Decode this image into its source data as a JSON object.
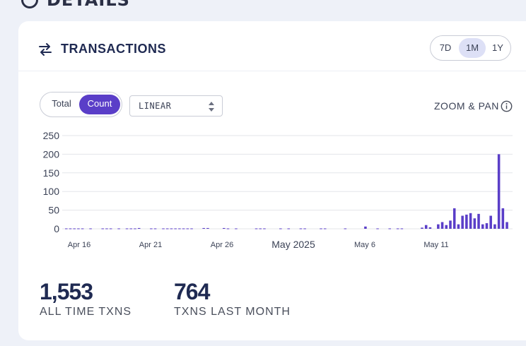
{
  "page": {
    "section_heading": "DETAILS"
  },
  "card": {
    "title": "TRANSACTIONS",
    "range_options": [
      "7D",
      "1M",
      "1Y"
    ],
    "range_selected": "1M",
    "mode_options": [
      "Total",
      "Count"
    ],
    "mode_selected": "Count",
    "scale_value": "LINEAR",
    "zoom_label": "ZOOM & PAN"
  },
  "colors": {
    "accent": "#5a3ec8",
    "title": "#1f2a52",
    "bar": "#5a3ec8"
  },
  "icons": {
    "title": "swap-arrows-icon",
    "info": "info-icon",
    "select": "sort-arrows-icon",
    "heading": "circle-icon"
  },
  "chart_data": {
    "type": "bar",
    "ylim": [
      0,
      250
    ],
    "yticks": [
      0,
      50,
      100,
      150,
      200,
      250
    ],
    "grid": true,
    "xtick_labels": [
      "Apr 16",
      "Apr 21",
      "Apr 26",
      "May 2025",
      "May 6",
      "May 11"
    ],
    "series": [
      {
        "values": [
          1,
          1,
          1,
          1,
          1,
          0,
          1,
          0,
          0,
          1,
          1,
          1,
          0,
          1,
          0,
          1,
          1,
          1,
          2,
          0,
          0,
          1,
          1,
          0,
          1,
          1,
          1,
          1,
          1,
          1,
          1,
          1,
          0,
          0,
          2,
          2,
          0,
          0,
          0,
          2,
          1,
          0,
          1,
          0,
          0,
          0,
          0,
          1,
          1,
          1,
          0,
          0,
          0,
          1,
          0,
          1,
          0,
          0,
          1,
          1,
          0,
          0,
          0,
          1,
          1,
          0,
          0,
          0,
          0,
          1,
          0,
          0,
          0,
          0,
          6,
          0,
          0,
          1,
          0,
          0,
          1,
          0,
          1,
          1,
          0,
          0,
          0,
          0,
          3,
          10,
          4,
          0,
          12,
          18,
          10,
          22,
          55,
          12,
          35,
          38,
          42,
          28,
          40,
          12,
          15,
          35,
          12,
          200,
          55,
          18
        ]
      }
    ]
  },
  "stats": [
    {
      "value": "1,553",
      "label": "ALL TIME TXNS"
    },
    {
      "value": "764",
      "label": "TXNS LAST MONTH"
    }
  ]
}
